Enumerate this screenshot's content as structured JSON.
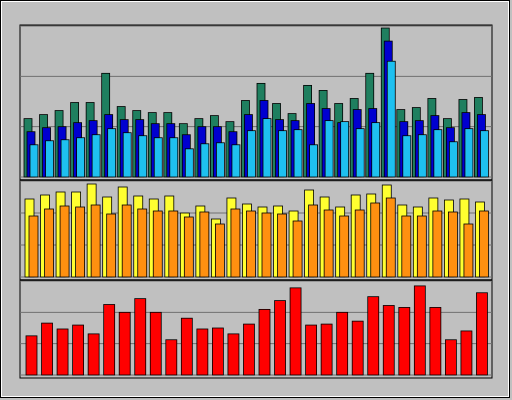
{
  "chart_data": [
    {
      "type": "bar",
      "ylim": [
        0,
        150
      ],
      "yticks": [
        0,
        50,
        100,
        150
      ],
      "grid": true,
      "series": [
        {
          "color": "#1f7f5f",
          "values": [
            58,
            62,
            66,
            74,
            74,
            103,
            70,
            66,
            64,
            64,
            53,
            58,
            61,
            55,
            76,
            93,
            73,
            63,
            91,
            86,
            73,
            78,
            103,
            148,
            67,
            69,
            78,
            58,
            77,
            79
          ]
        },
        {
          "color": "#0000d0",
          "values": [
            45,
            49,
            50,
            54,
            56,
            62,
            57,
            57,
            53,
            53,
            42,
            50,
            50,
            45,
            62,
            76,
            57,
            56,
            73,
            68,
            54,
            67,
            68,
            135,
            55,
            56,
            61,
            49,
            64,
            62
          ]
        },
        {
          "color": "#1ec0f0",
          "values": [
            32,
            36,
            37,
            39,
            42,
            48,
            44,
            41,
            39,
            39,
            28,
            33,
            34,
            32,
            46,
            58,
            46,
            47,
            32,
            56,
            55,
            48,
            54,
            115,
            41,
            42,
            47,
            35,
            48,
            46
          ]
        }
      ]
    },
    {
      "type": "bar",
      "ylim": [
        0,
        96
      ],
      "yticks": [
        0,
        32,
        64,
        96
      ],
      "grid": true,
      "series": [
        {
          "color": "#ffff30",
          "values": [
            78,
            82,
            85,
            85,
            93,
            80,
            90,
            81,
            78,
            81,
            64,
            71,
            58,
            79,
            73,
            70,
            71,
            66,
            87,
            80,
            70,
            82,
            83,
            92,
            72,
            70,
            79,
            77,
            78,
            75
          ]
        },
        {
          "color": "#ff9010",
          "values": [
            61,
            68,
            71,
            70,
            72,
            63,
            72,
            68,
            66,
            66,
            60,
            65,
            53,
            68,
            66,
            64,
            63,
            56,
            72,
            67,
            61,
            67,
            74,
            79,
            61,
            61,
            66,
            65,
            53,
            66
          ]
        }
      ]
    },
    {
      "type": "bar",
      "ylim": [
        0,
        96
      ],
      "yticks": [
        0,
        32,
        64,
        96
      ],
      "grid": true,
      "series": [
        {
          "color": "#ff0000",
          "values": [
            40,
            53,
            47,
            51,
            42,
            72,
            64,
            78,
            64,
            36,
            58,
            47,
            48,
            42,
            52,
            67,
            76,
            89,
            51,
            52,
            64,
            55,
            80,
            71,
            69,
            91,
            69,
            36,
            45,
            84
          ]
        }
      ]
    }
  ]
}
